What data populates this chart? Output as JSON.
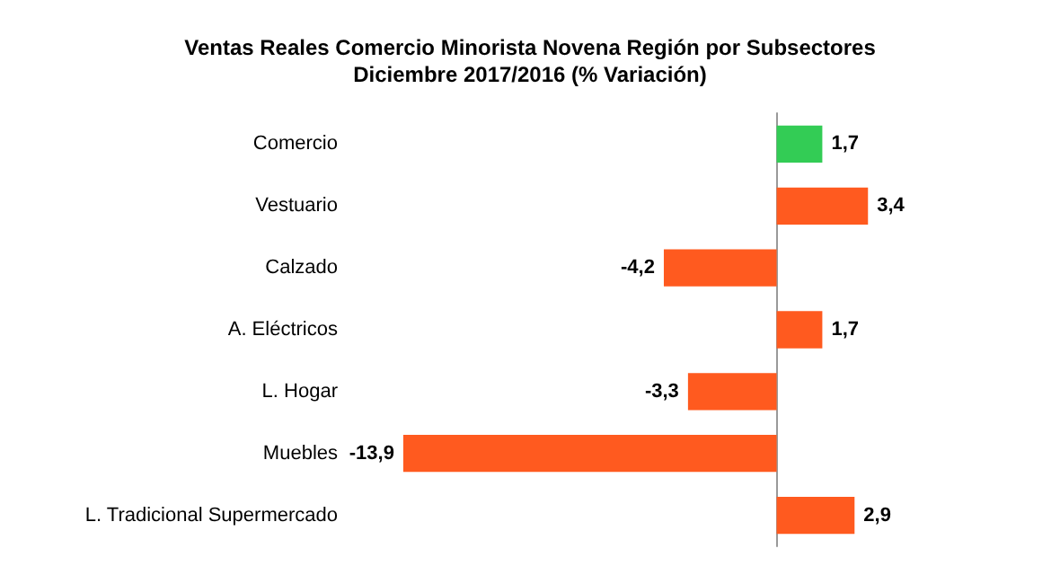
{
  "chart_data": {
    "type": "bar",
    "orientation": "horizontal",
    "title": "Ventas Reales Comercio Minorista Novena Región por Subsectores\nDiciembre 2017/2016 (% Variación)",
    "categories": [
      "Comercio",
      "Vestuario",
      "Calzado",
      "A. Eléctricos",
      "L. Hogar",
      "Muebles",
      "L. Tradicional Supermercado"
    ],
    "values": [
      1.7,
      3.4,
      -4.2,
      1.7,
      -3.3,
      -13.9,
      2.9
    ],
    "value_labels": [
      "1,7",
      "3,4",
      "-4,2",
      "1,7",
      "-3,3",
      "-13,9",
      "2,9"
    ],
    "colors": [
      "#33cc55",
      "#ff5a1f",
      "#ff5a1f",
      "#ff5a1f",
      "#ff5a1f",
      "#ff5a1f",
      "#ff5a1f"
    ],
    "grid": false
  }
}
